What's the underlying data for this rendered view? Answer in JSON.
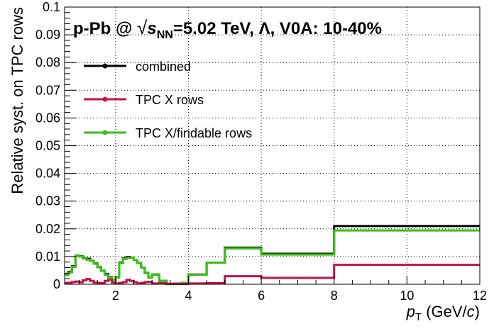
{
  "chart_data": {
    "type": "line",
    "title": "p-Pb @ √sNN=5.02 TeV, Λ, V0A: 10-40%",
    "title_parts": {
      "prefix": "p-Pb @ ",
      "sqrt": "√",
      "s": "s",
      "sub": "NN",
      "suffix": "=5.02 TeV, Λ, V0A: 10-40%"
    },
    "xlabel": "p",
    "xlabel_sub": "T",
    "xlabel_unit_open": " (GeV/",
    "xlabel_unit_c": "c",
    "xlabel_unit_close": ")",
    "ylabel": "Relative syst. on TPC rows",
    "xlim": [
      0.6,
      12
    ],
    "ylim": [
      0,
      0.1
    ],
    "x_ticks": [
      2,
      4,
      6,
      8,
      10,
      12
    ],
    "x_tick_labels": [
      "2",
      "4",
      "6",
      "8",
      "10",
      "12"
    ],
    "y_ticks": [
      0,
      0.01,
      0.02,
      0.03,
      0.04,
      0.05,
      0.06,
      0.07,
      0.08,
      0.09,
      0.1
    ],
    "y_tick_labels": [
      "0",
      "0.01",
      "0.02",
      "0.03",
      "0.04",
      "0.05",
      "0.06",
      "0.07",
      "0.08",
      "0.09",
      "0.1"
    ],
    "grid": true,
    "legend_position": "top-left",
    "bin_edges": [
      0.6,
      0.7,
      0.8,
      0.9,
      1.0,
      1.1,
      1.2,
      1.3,
      1.4,
      1.5,
      1.6,
      1.7,
      1.8,
      1.9,
      2.0,
      2.1,
      2.2,
      2.3,
      2.4,
      2.5,
      2.6,
      2.7,
      2.8,
      2.9,
      3.0,
      3.2,
      3.4,
      3.6,
      3.8,
      4.0,
      4.5,
      5.0,
      6.0,
      8.0,
      12.0
    ],
    "series": [
      {
        "name": "combined",
        "color": "#000000",
        "values": [
          0.0035,
          0.0045,
          0.0065,
          0.0103,
          0.0101,
          0.0094,
          0.0092,
          0.0085,
          0.0075,
          0.0062,
          0.0049,
          0.0037,
          0.0025,
          0.0015,
          0.0025,
          0.0078,
          0.0093,
          0.0098,
          0.0096,
          0.0087,
          0.0077,
          0.006,
          0.0041,
          0.0024,
          0.0035,
          0.0012,
          0.0001,
          0.0002,
          0.0005,
          0.0035,
          0.0078,
          0.0132,
          0.011,
          0.021
        ]
      },
      {
        "name": "TPC X rows",
        "color": "#c4124a",
        "values": [
          0.0005,
          0.0005,
          0.0008,
          0.001,
          0.0007,
          0.0014,
          0.0019,
          0.0012,
          0.0006,
          0.0005,
          0.0004,
          0.0012,
          0.0016,
          0.0006,
          0.0003,
          0.0005,
          0.0008,
          0.0016,
          0.0012,
          0.0007,
          0.0003,
          0.0005,
          0.0008,
          0.0009,
          0.0003,
          0.0004,
          0.0002,
          0.0002,
          0.0001,
          0.0003,
          0.0004,
          0.0029,
          0.0023,
          0.007
        ]
      },
      {
        "name": "TPC X/findable rows",
        "color": "#38c014",
        "values": [
          0.0033,
          0.0043,
          0.0063,
          0.0102,
          0.01,
          0.0093,
          0.0089,
          0.0085,
          0.0074,
          0.0062,
          0.0049,
          0.0034,
          0.0023,
          0.0014,
          0.0025,
          0.0076,
          0.0091,
          0.0095,
          0.0096,
          0.0087,
          0.0077,
          0.006,
          0.004,
          0.0024,
          0.0035,
          0.0012,
          0.0001,
          0.0001,
          0.0005,
          0.0035,
          0.0078,
          0.0129,
          0.0107,
          0.0194
        ]
      }
    ]
  }
}
